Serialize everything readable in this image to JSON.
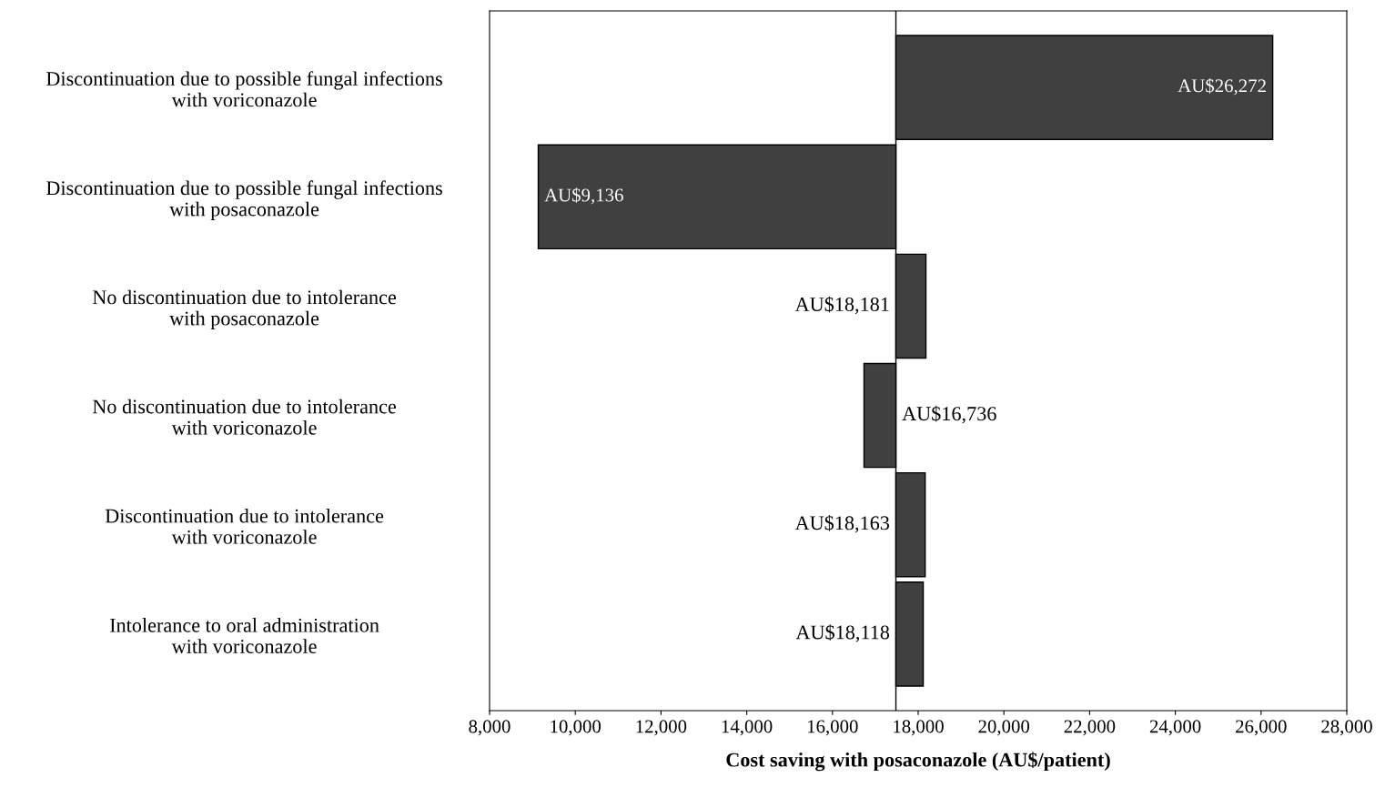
{
  "chart_data": {
    "type": "bar",
    "orientation": "horizontal",
    "xlabel": "Cost saving with posaconazole (AU$/patient)",
    "categories": [
      "Discontinuation due to possible fungal infections\nwith voriconazole",
      "Discontinuation due to possible fungal infections\nwith posaconazole",
      "No discontinuation due to intolerance\nwith posaconazole",
      "No discontinuation due to intolerance\nwith voriconazole",
      "Discontinuation due to intolerance\nwith voriconazole",
      "Intolerance to oral administration\nwith voriconazole"
    ],
    "base": [
      17480,
      17480,
      17480,
      17480,
      17480,
      17480
    ],
    "values": [
      8792,
      -8344,
      701,
      -744,
      683,
      638
    ],
    "value_labels": [
      "AU$26,272",
      "AU$9,136",
      "AU$18,181",
      "AU$16,736",
      "AU$18,163",
      "AU$18,118"
    ],
    "color": "#404040",
    "xlim": [
      8000,
      28000
    ],
    "xticks": [
      {
        "value": 8000,
        "label": "8,000"
      },
      {
        "value": 10000,
        "label": "10,000"
      },
      {
        "value": 12000,
        "label": "12,000"
      },
      {
        "value": 14000,
        "label": "14,000"
      },
      {
        "value": 16000,
        "label": "16,000"
      },
      {
        "value": 18000,
        "label": "18,000"
      },
      {
        "value": 20000,
        "label": "20,000"
      },
      {
        "value": 22000,
        "label": "22,000"
      },
      {
        "value": 24000,
        "label": "24,000"
      },
      {
        "value": 26000,
        "label": "26,000"
      },
      {
        "value": 28000,
        "label": "28,000"
      }
    ],
    "ref_lines": [
      {
        "axis": "x",
        "value": 17480,
        "label": null,
        "color": "#000000"
      }
    ],
    "grid": false,
    "legend": false
  }
}
